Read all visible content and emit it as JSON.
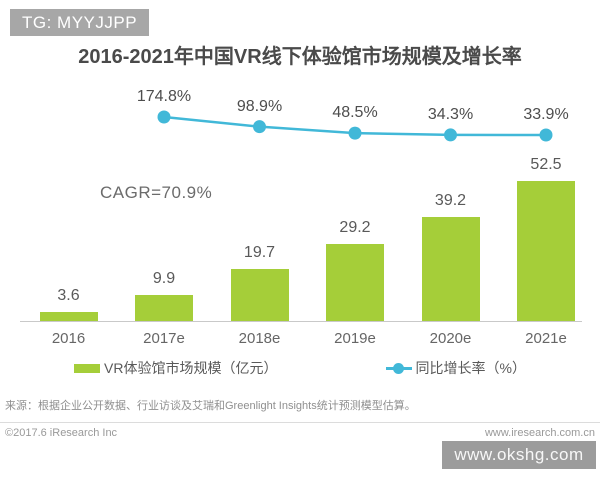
{
  "badges": {
    "top_left": "TG: MYYJJPP",
    "bottom_right": "www.okshg.com"
  },
  "chart": {
    "title": "2016-2021年中国VR线下体验馆市场规模及增长率",
    "cagr_label": "CAGR=70.9%",
    "legend": {
      "bars": "VR体验馆市场规模（亿元）",
      "line": "同比增长率（%）"
    }
  },
  "chart_data": {
    "type": "bar",
    "subtype": "bar+line combo",
    "title": "2016-2021年中国VR线下体验馆市场规模及增长率",
    "categories": [
      "2016",
      "2017e",
      "2018e",
      "2019e",
      "2020e",
      "2021e"
    ],
    "series": [
      {
        "name": "VR体验馆市场规模（亿元）",
        "type": "bar",
        "values": [
          3.6,
          9.9,
          19.7,
          29.2,
          39.2,
          52.5
        ],
        "color": "#a5ce39"
      },
      {
        "name": "同比增长率（%）",
        "type": "line",
        "values": [
          null,
          174.8,
          98.9,
          48.5,
          34.3,
          33.9
        ],
        "labels": [
          "",
          "174.8%",
          "98.9%",
          "48.5%",
          "34.3%",
          "33.9%"
        ],
        "color": "#41b8d8"
      }
    ],
    "annotations": [
      "CAGR=70.9%"
    ],
    "xlabel": "",
    "ylabel": "",
    "grid": false,
    "legend_position": "bottom"
  },
  "footer": {
    "source": "来源：根据企业公开数据、行业访谈及艾瑞和Greenlight Insights统计预测模型估算。",
    "copyright": "©2017.6 iResearch Inc",
    "website": "www.iresearch.com.cn"
  }
}
